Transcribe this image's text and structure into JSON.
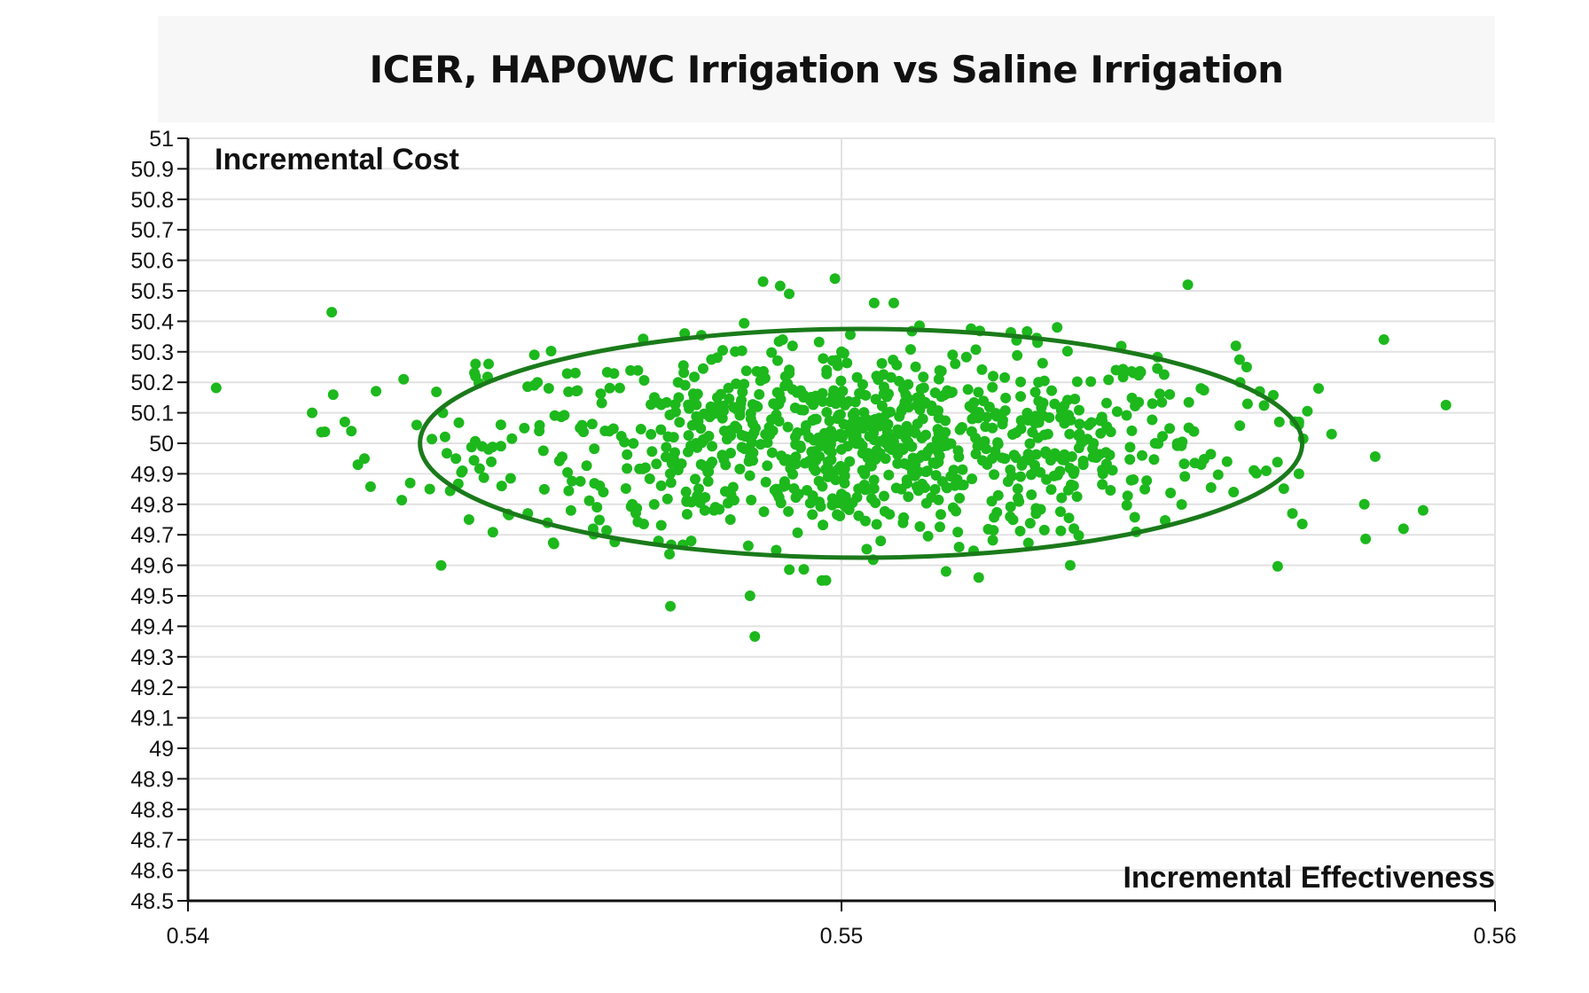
{
  "chart_data": {
    "type": "scatter",
    "title": "ICER, HAPOWC Irrigation vs Saline Irrigation",
    "xlabel": "Incremental Effectiveness",
    "ylabel": "Incremental Cost",
    "xlim": [
      0.54,
      0.56
    ],
    "ylim": [
      48.5,
      51
    ],
    "x_ticks": [
      "0.54",
      "0.55",
      "0.56"
    ],
    "y_ticks": [
      "48.5",
      "48.6",
      "48.7",
      "48.8",
      "48.9",
      "49",
      "49.1",
      "49.2",
      "49.3",
      "49.4",
      "49.5",
      "49.6",
      "49.7",
      "49.8",
      "49.9",
      "50",
      "50.1",
      "50.2",
      "50.3",
      "50.4",
      "50.5",
      "50.6",
      "50.7",
      "50.8",
      "50.9",
      "51"
    ],
    "grid": true,
    "point_color": "#1cb81c",
    "ellipse_color": "#1a7a1a",
    "ellipse": {
      "cx": 0.5503,
      "cy": 50.0,
      "rx": 0.00675,
      "ry": 0.375
    },
    "series": [
      {
        "x": [
          0.5419,
          0.5422,
          0.5424,
          0.5425,
          0.5426,
          0.5427,
          0.5433,
          0.5434,
          0.5435,
          0.5437,
          0.5439,
          0.5441,
          0.5442,
          0.5443,
          0.5444,
          0.5444,
          0.5446,
          0.5446,
          0.5448,
          0.5452,
          0.5453,
          0.5453,
          0.5456,
          0.5462,
          0.5472,
          0.5476,
          0.5477,
          0.5486,
          0.5488,
          0.5491,
          0.5492,
          0.5497,
          0.5499,
          0.55,
          0.5505,
          0.5506,
          0.5508,
          0.5516,
          0.5517,
          0.5518,
          0.5521,
          0.553,
          0.5533,
          0.5535,
          0.5542,
          0.5546,
          0.5553,
          0.5555,
          0.5559,
          0.556,
          0.5561,
          0.5562,
          0.5564,
          0.5565,
          0.5567,
          0.5569,
          0.557,
          0.557,
          0.5573,
          0.5575,
          0.558,
          0.5583,
          0.5586,
          0.5589,
          0.546,
          0.547,
          0.548,
          0.549,
          0.5495,
          0.55,
          0.5502,
          0.551,
          0.552,
          0.5525,
          0.554,
          0.5548,
          0.5468,
          0.5475,
          0.5483,
          0.5512,
          0.5527,
          0.5537
        ],
        "y": [
          50.1,
          50.43,
          50.07,
          50.04,
          49.93,
          49.95,
          50.21,
          49.87,
          50.06,
          49.85,
          50.1,
          49.95,
          49.91,
          49.75,
          50.26,
          50.22,
          50.26,
          49.98,
          49.86,
          49.77,
          50.19,
          50.29,
          49.67,
          49.72,
          49.68,
          50.36,
          49.68,
          49.5,
          50.53,
          50.34,
          50.49,
          49.55,
          50.54,
          50.3,
          50.46,
          49.68,
          50.46,
          49.58,
          50.29,
          49.66,
          49.56,
          50.33,
          50.38,
          49.6,
          50.24,
          49.96,
          50.52,
          50.18,
          49.94,
          49.84,
          50.2,
          50.25,
          50.17,
          49.91,
          50.07,
          49.77,
          49.9,
          50.07,
          50.18,
          50.03,
          49.8,
          50.34,
          49.72,
          49.78,
          50.05,
          49.92,
          50.12,
          49.85,
          50.02,
          49.98,
          50.1,
          49.88,
          50.08,
          49.95,
          49.9,
          50.0,
          49.8,
          50.2,
          49.75,
          50.15,
          49.82,
          49.93
        ]
      }
    ]
  }
}
